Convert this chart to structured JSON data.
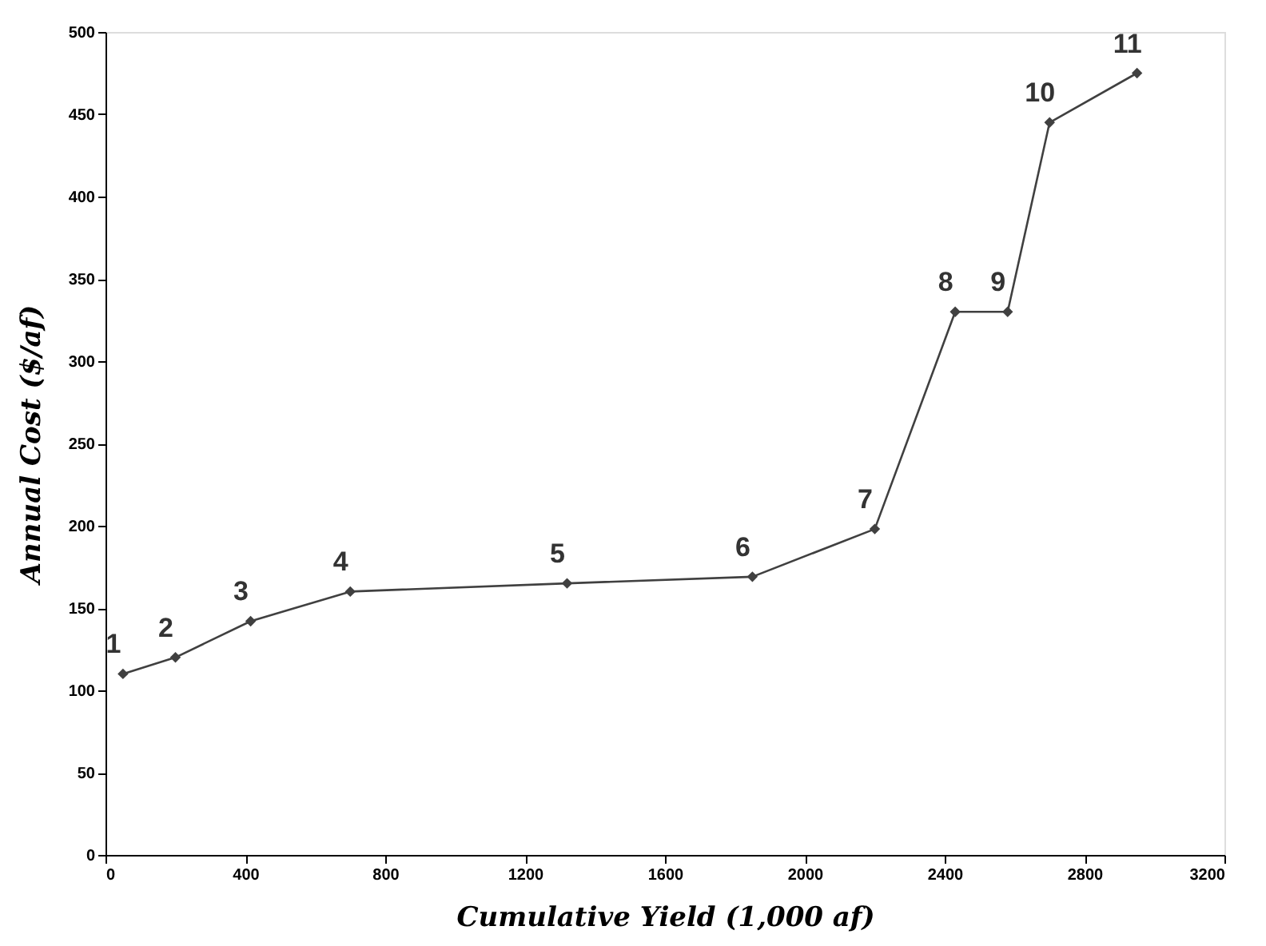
{
  "chart_data": {
    "type": "line",
    "xlabel": "Cumulative Yield (1,000 af)",
    "ylabel": "Annual Cost ($/af)",
    "x": [
      50,
      200,
      415,
      700,
      1320,
      1850,
      2200,
      2430,
      2580,
      2700,
      2950
    ],
    "series": [
      {
        "color": "#404040",
        "values": [
          110,
          120,
          142,
          160,
          165,
          169,
          198,
          330,
          330,
          445,
          475
        ]
      }
    ],
    "xlim": [
      0,
      3200
    ],
    "xticks": [
      0,
      400,
      800,
      1200,
      1600,
      2000,
      2400,
      2800,
      3200
    ],
    "ylim": [
      0,
      500
    ],
    "yticks": [
      0,
      50,
      100,
      150,
      200,
      250,
      300,
      350,
      400,
      450,
      500
    ],
    "grid": false,
    "marker": "diamond",
    "line_style": "solid",
    "annotations": [
      {
        "text": "1",
        "x": 50,
        "y": 110
      },
      {
        "text": "2",
        "x": 200,
        "y": 120
      },
      {
        "text": "3",
        "x": 415,
        "y": 142
      },
      {
        "text": "4",
        "x": 700,
        "y": 160
      },
      {
        "text": "5",
        "x": 1320,
        "y": 165
      },
      {
        "text": "6",
        "x": 1850,
        "y": 169
      },
      {
        "text": "7",
        "x": 2200,
        "y": 198
      },
      {
        "text": "8",
        "x": 2430,
        "y": 330
      },
      {
        "text": "9",
        "x": 2580,
        "y": 330
      },
      {
        "text": "10",
        "x": 2700,
        "y": 445
      },
      {
        "text": "11",
        "x": 2950,
        "y": 475
      }
    ]
  }
}
